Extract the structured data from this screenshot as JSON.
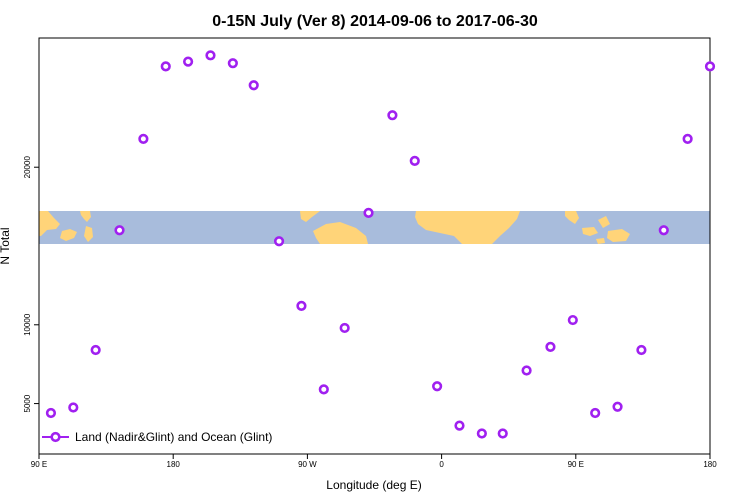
{
  "chart_data": {
    "type": "scatter",
    "title": "0-15N July (Ver 8)   2014-09-06 to 2017-06-30",
    "xlabel": "Longitude (deg E)",
    "ylabel": "N Total",
    "x_ticks": [
      {
        "value": 90,
        "label": "90 E"
      },
      {
        "value": 180,
        "label": "180"
      },
      {
        "value": 270,
        "label": "90 W"
      },
      {
        "value": 360,
        "label": "0"
      },
      {
        "value": 450,
        "label": "90 E"
      },
      {
        "value": 540,
        "label": "180"
      }
    ],
    "y_ticks": [
      5000,
      10000,
      20000
    ],
    "xlim": [
      90,
      540
    ],
    "ylim": [
      1800,
      28200
    ],
    "grid": false,
    "legend_position": "bottom-left",
    "marker_color": "#a020f0",
    "map_band_colors": {
      "ocean": "#a8bcdc",
      "land": "#ffd479"
    },
    "series": [
      {
        "name": "Land (Nadir&Glint) and Ocean (Glint)",
        "x": [
          98,
          113,
          128,
          144,
          160,
          175,
          190,
          205,
          220,
          234,
          251,
          266,
          281,
          295,
          311,
          327,
          342,
          357,
          372,
          387,
          401,
          417,
          433,
          448,
          463,
          478,
          494,
          509,
          525,
          540
        ],
        "y": [
          4400,
          4750,
          8400,
          16000,
          21800,
          26400,
          26700,
          27100,
          26600,
          25200,
          15300,
          11200,
          5900,
          9800,
          17100,
          23300,
          20400,
          6100,
          3600,
          3100,
          3100,
          7100,
          8600,
          10300,
          4400,
          4800,
          8400,
          16000,
          21800,
          26400
        ]
      }
    ]
  }
}
